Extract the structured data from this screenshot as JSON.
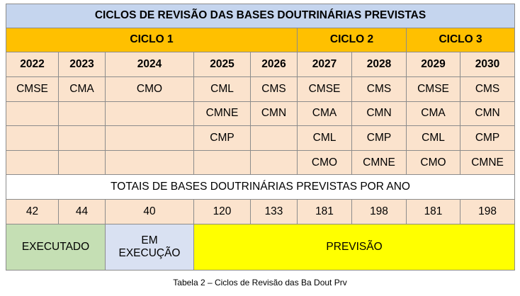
{
  "table": {
    "title": "CICLOS DE REVISÃO DAS BASES DOUTRINÁRIAS PREVISTAS",
    "cycles": [
      "CICLO 1",
      "CICLO 2",
      "CICLO 3"
    ],
    "years": [
      "2022",
      "2023",
      "2024",
      "2025",
      "2026",
      "2027",
      "2028",
      "2029",
      "2030"
    ],
    "rows": [
      [
        "CMSE",
        "CMA",
        "CMO",
        "CML",
        "CMS",
        "CMSE",
        "CMS",
        "CMSE",
        "CMS"
      ],
      [
        "",
        "",
        "",
        "CMNE",
        "CMN",
        "CMA",
        "CMN",
        "CMA",
        "CMN"
      ],
      [
        "",
        "",
        "",
        "CMP",
        "",
        "CML",
        "CMP",
        "CML",
        "CMP"
      ],
      [
        "",
        "",
        "",
        "",
        "",
        "CMO",
        "CMNE",
        "CMO",
        "CMNE"
      ]
    ],
    "totals_label": "TOTAIS DE BASES DOUTRINÁRIAS PREVISTAS POR ANO",
    "totals": [
      "42",
      "44",
      "40",
      "120",
      "133",
      "181",
      "198",
      "181",
      "198"
    ],
    "status": {
      "executed": "EXECUTADO",
      "in_progress_line1": "EM",
      "in_progress_line2": "EXECUÇÃO",
      "forecast": "PREVISÃO"
    },
    "colors": {
      "title_bg": "#c5d5ee",
      "cycle_bg": "#ffc000",
      "cell_bg": "#fbe3cd",
      "executed_bg": "#c5dfb4",
      "in_progress_bg": "#d9e1f2",
      "forecast_bg": "#ffff00"
    }
  },
  "caption": "Tabela 2 – Ciclos de Revisão das Ba Dout Prv"
}
